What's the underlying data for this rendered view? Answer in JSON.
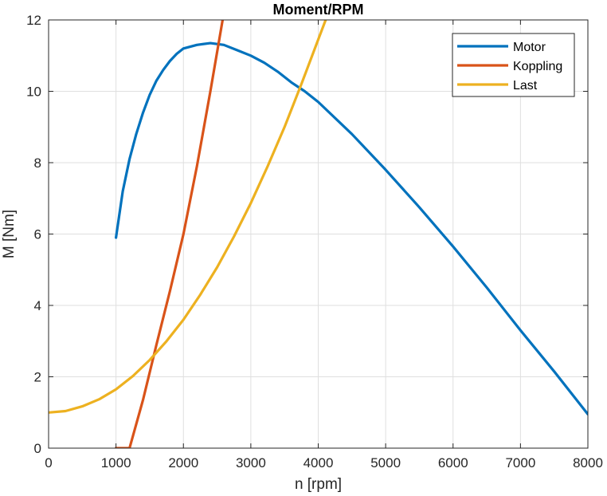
{
  "chart_data": {
    "type": "line",
    "title": "Moment/RPM",
    "xlabel": "n [rpm]",
    "ylabel": "M [Nm]",
    "xlim": [
      0,
      8000
    ],
    "ylim": [
      0,
      12
    ],
    "xticks": [
      0,
      1000,
      2000,
      3000,
      4000,
      5000,
      6000,
      7000,
      8000
    ],
    "yticks": [
      0,
      2,
      4,
      6,
      8,
      10,
      12
    ],
    "grid": true,
    "legend_position": "top-right",
    "series": [
      {
        "name": "Motor",
        "color": "#0072BD",
        "x": [
          1000,
          1100,
          1200,
          1300,
          1400,
          1500,
          1600,
          1700,
          1800,
          1900,
          2000,
          2200,
          2400,
          2600,
          2800,
          3000,
          3200,
          3400,
          3600,
          3800,
          4000,
          4500,
          5000,
          5500,
          6000,
          6500,
          7000,
          7500,
          8000
        ],
        "y": [
          5.9,
          7.2,
          8.1,
          8.8,
          9.4,
          9.9,
          10.3,
          10.6,
          10.85,
          11.05,
          11.2,
          11.3,
          11.35,
          11.3,
          11.15,
          11.0,
          10.8,
          10.55,
          10.25,
          10.0,
          9.7,
          8.8,
          7.8,
          6.75,
          5.65,
          4.5,
          3.3,
          2.15,
          0.95
        ]
      },
      {
        "name": "Koppling",
        "color": "#D95319",
        "x": [
          1000,
          1200,
          1400,
          1600,
          1800,
          2000,
          2200,
          2400,
          2600
        ],
        "y": [
          0,
          0,
          1.35,
          2.9,
          4.4,
          6.0,
          7.9,
          10.0,
          12.2
        ]
      },
      {
        "name": "Last",
        "color": "#EDB120",
        "x": [
          0,
          250,
          500,
          750,
          1000,
          1250,
          1500,
          1750,
          2000,
          2250,
          2500,
          2750,
          3000,
          3250,
          3500,
          3750,
          4000,
          4150
        ],
        "y": [
          1.0,
          1.04,
          1.17,
          1.37,
          1.65,
          2.02,
          2.47,
          3.0,
          3.6,
          4.3,
          5.07,
          5.93,
          6.87,
          7.9,
          9.0,
          10.2,
          11.45,
          12.2
        ]
      }
    ]
  }
}
